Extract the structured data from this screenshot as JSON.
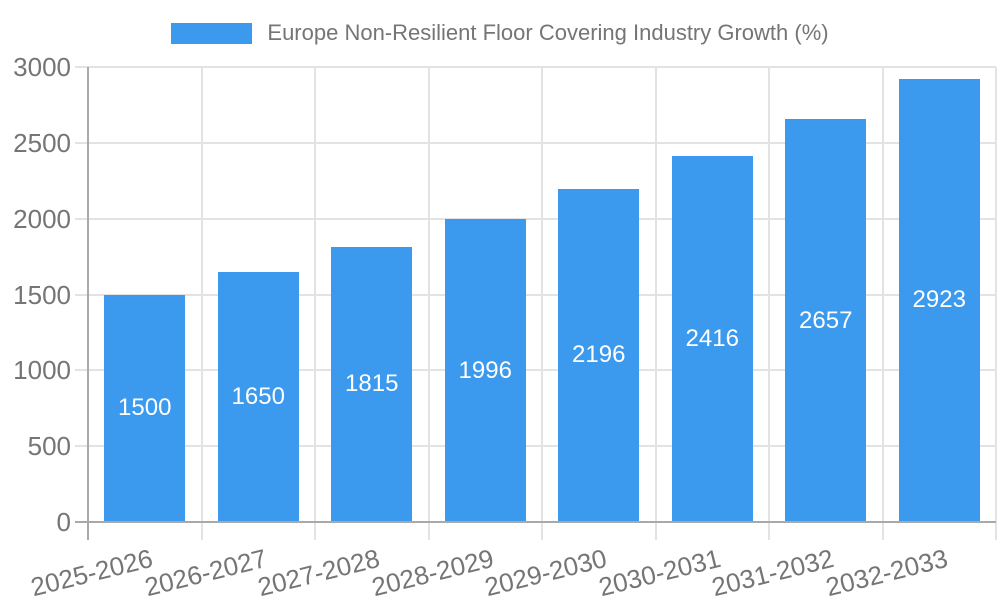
{
  "legend": {
    "label": "Europe Non-Resilient Floor Covering Industry Growth (%)"
  },
  "colors": {
    "bar": "#3B99EE",
    "axis_text": "#757575",
    "value_label_text": "#FFFFFF",
    "gridline": "#E3E3E3",
    "axis_line": "#A9A9A9",
    "background": "#FFFFFF"
  },
  "chart_data": {
    "type": "bar",
    "title": "Europe Non-Resilient Floor Covering Industry Growth (%)",
    "categories": [
      "2025-2026",
      "2026-2027",
      "2027-2028",
      "2028-2029",
      "2029-2030",
      "2030-2031",
      "2031-2032",
      "2032-2033"
    ],
    "series": [
      {
        "name": "Europe Non-Resilient Floor Covering Industry Growth (%)",
        "values": [
          1500,
          1650,
          1815,
          1996,
          2196,
          2416,
          2657,
          2923
        ]
      }
    ],
    "xlabel": "",
    "ylabel": "",
    "ylim": [
      0,
      3000
    ],
    "y_ticks": [
      0,
      500,
      1000,
      1500,
      2000,
      2500,
      3000
    ],
    "grid": true,
    "legend_position": "top-center",
    "value_label_position": "inside-center",
    "x_tick_rotation_deg": -14
  }
}
